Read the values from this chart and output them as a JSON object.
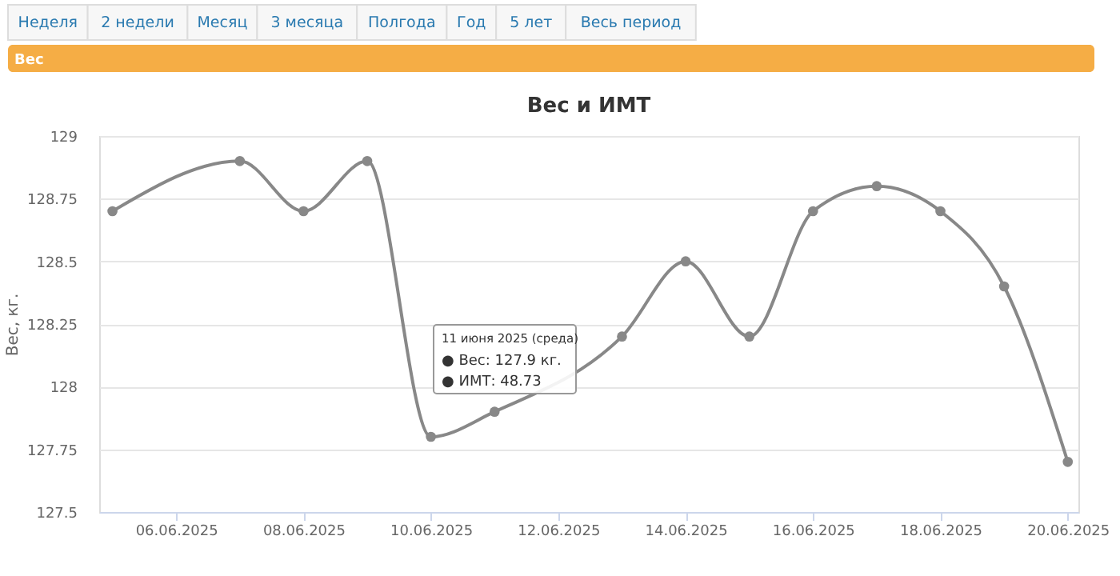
{
  "chart_data": {
    "type": "line",
    "title": "Вес и ИМТ",
    "ylabel": "Вес, кг.",
    "x": [
      "2025-06-05",
      "2025-06-07",
      "2025-06-08",
      "2025-06-09",
      "2025-06-10",
      "2025-06-11",
      "2025-06-13",
      "2025-06-14",
      "2025-06-15",
      "2025-06-16",
      "2025-06-17",
      "2025-06-18",
      "2025-06-19",
      "2025-06-20"
    ],
    "series": [
      {
        "color": "#888888",
        "values": [
          128.7,
          128.9,
          128.7,
          128.9,
          127.8,
          127.9,
          128.2,
          128.5,
          128.2,
          128.7,
          128.8,
          128.7,
          128.4,
          127.7
        ]
      }
    ],
    "xlim": [
      "2025-06-04T19:00",
      "2025-06-20T04:00"
    ],
    "xticks": [
      {
        "value": "2025-06-06",
        "label": "06.06.2025"
      },
      {
        "value": "2025-06-08",
        "label": "08.06.2025"
      },
      {
        "value": "2025-06-10",
        "label": "10.06.2025"
      },
      {
        "value": "2025-06-12",
        "label": "12.06.2025"
      },
      {
        "value": "2025-06-14",
        "label": "14.06.2025"
      },
      {
        "value": "2025-06-16",
        "label": "16.06.2025"
      },
      {
        "value": "2025-06-18",
        "label": "18.06.2025"
      },
      {
        "value": "2025-06-20",
        "label": "20.06.2025"
      }
    ],
    "ylim": [
      127.5,
      129
    ],
    "yticks": [
      127.5,
      127.75,
      128,
      128.25,
      128.5,
      128.75,
      129
    ],
    "grid": "y",
    "marker": "circle",
    "line_style": "solid",
    "annotations": [
      "Неделя",
      "2 недели",
      "Месяц",
      "3 месяца",
      "Полгода",
      "Год",
      "5 лет",
      "Весь период",
      "Вес",
      "11 июня 2025 (среда)",
      "● Вес: 127.9 кг.",
      "● ИМТ: 48.73"
    ]
  }
}
